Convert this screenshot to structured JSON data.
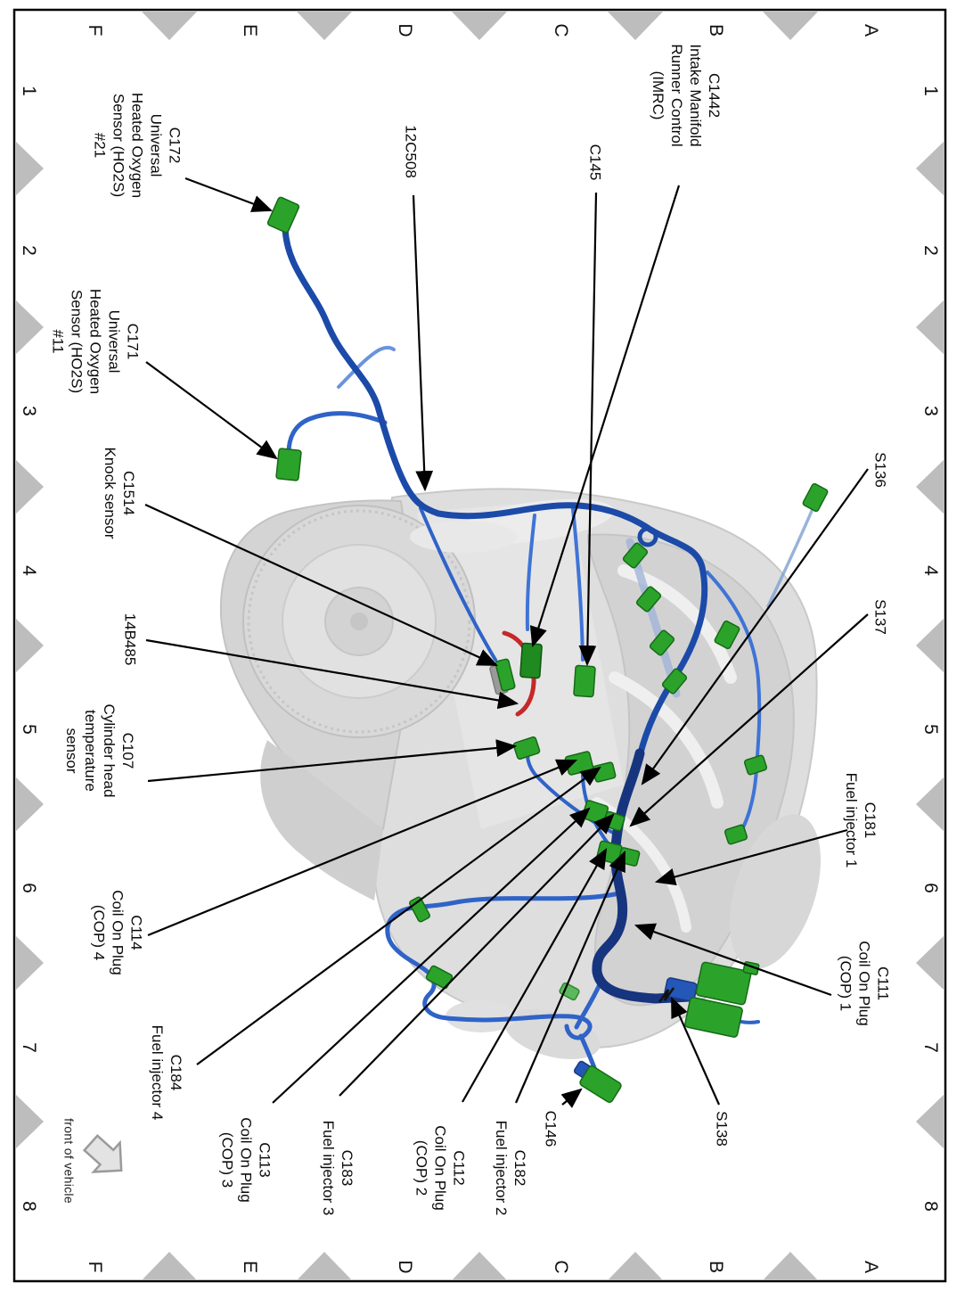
{
  "figure": {
    "description_visible_text_only": "",
    "grid": {
      "top_letters": [
        "F",
        "E",
        "D",
        "C",
        "B",
        "A"
      ],
      "bottom_letters": [
        "F",
        "E",
        "D",
        "C",
        "B",
        "A"
      ],
      "left_numbers": [
        "1",
        "2",
        "3",
        "4",
        "5",
        "6",
        "7",
        "8"
      ],
      "right_numbers": [
        "1",
        "2",
        "3",
        "4",
        "5",
        "6",
        "7",
        "8"
      ]
    },
    "orientation_note": "front of vehicle"
  },
  "labels": [
    {
      "id": "c172",
      "text": "C172\nUniversal\nHeated Oxygen\nSensor (HO2S)\n#21"
    },
    {
      "id": "c171",
      "text": "C171\nUniversal\nHeated Oxygen\nSensor (HO2S)\n#11"
    },
    {
      "id": "c1514",
      "text": "C1514\nKnock sensor"
    },
    {
      "id": "p14b485",
      "text": "14B485"
    },
    {
      "id": "c107",
      "text": "C107\nCylinder head\ntemperature\nsensor"
    },
    {
      "id": "c114",
      "text": "C114\nCoil On Plug\n(COP) 4"
    },
    {
      "id": "c184",
      "text": "C184\nFuel injector 4"
    },
    {
      "id": "c113",
      "text": "C113\nCoil On Plug\n(COP) 3"
    },
    {
      "id": "c183",
      "text": "C183\nFuel injector 3"
    },
    {
      "id": "c112",
      "text": "C112\nCoil On Plug\n(COP) 2"
    },
    {
      "id": "c182",
      "text": "C182\nFuel injector 2"
    },
    {
      "id": "c146",
      "text": "C146"
    },
    {
      "id": "s138",
      "text": "S138"
    },
    {
      "id": "c111",
      "text": "C111\nCoil On Plug\n(COP) 1"
    },
    {
      "id": "c181",
      "text": "C181\nFuel injector 1"
    },
    {
      "id": "s137",
      "text": "S137"
    },
    {
      "id": "s136",
      "text": "S136"
    },
    {
      "id": "c145",
      "text": "C145"
    },
    {
      "id": "c1442",
      "text": "C1442\nIntake Manifold\nRunner Control\n(IMRC)"
    },
    {
      "id": "p12c508",
      "text": "12C508"
    },
    {
      "id": "front",
      "text": "front of vehicle"
    }
  ],
  "colors": {
    "harness_dark_blue": "#16357e",
    "harness_blue": "#1c4aa8",
    "wire_blue": "#2f63c8",
    "wire_light_blue": "#6b93dd",
    "connector_green": "#2ba32b",
    "connector_green_dark": "#1f8a1f",
    "red_connector_loop": "#c62828",
    "tick_triangle_gray": "#bdbdbd",
    "engine_gray": "#dcdcdc",
    "border_black": "#000000"
  }
}
